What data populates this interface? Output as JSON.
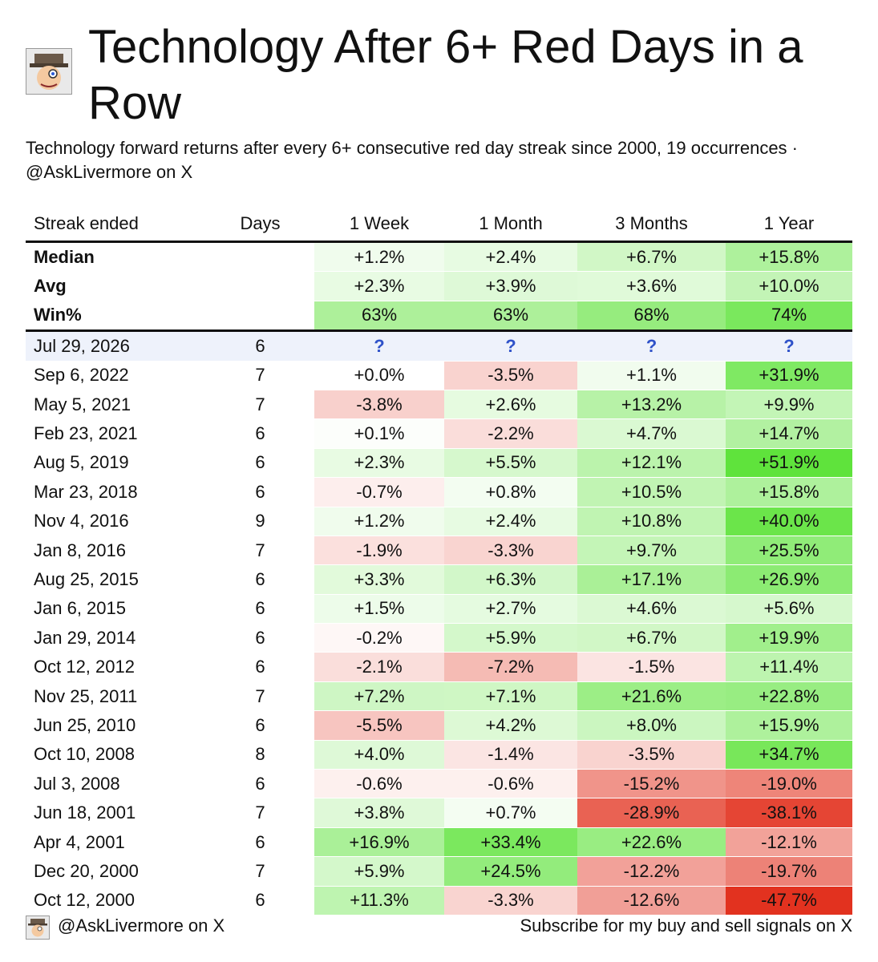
{
  "title": "Technology After 6+ Red Days in a Row",
  "subtitle": "Technology forward returns after every 6+ consecutive red day streak since 2000, 19 occurrences · @AskLivermore on X",
  "logo_icon": "detective-avatar-icon",
  "colors": {
    "green_max": "#5fe33c",
    "red_max": "#e2321f",
    "pending_row": "#eef2fb",
    "question_mark": "#2f52c9"
  },
  "chart_data": {
    "type": "table",
    "columns": [
      "Streak ended",
      "Days",
      "1 Week",
      "1 Month",
      "3 Months",
      "1 Year"
    ],
    "summary": [
      {
        "label": "Median",
        "days": "",
        "values": [
          "+1.2%",
          "+2.4%",
          "+6.7%",
          "+15.8%"
        ]
      },
      {
        "label": "Avg",
        "days": "",
        "values": [
          "+2.3%",
          "+3.9%",
          "+3.6%",
          "+10.0%"
        ]
      },
      {
        "label": "Win%",
        "days": "",
        "values": [
          "63%",
          "63%",
          "68%",
          "74%"
        ]
      }
    ],
    "pending": {
      "date": "Jul 29, 2026",
      "days": "6",
      "values": [
        "?",
        "?",
        "?",
        "?"
      ]
    },
    "rows": [
      {
        "date": "Sep 6, 2022",
        "days": "7",
        "values": [
          "+0.0%",
          "-3.5%",
          "+1.1%",
          "+31.9%"
        ]
      },
      {
        "date": "May 5, 2021",
        "days": "7",
        "values": [
          "-3.8%",
          "+2.6%",
          "+13.2%",
          "+9.9%"
        ]
      },
      {
        "date": "Feb 23, 2021",
        "days": "6",
        "values": [
          "+0.1%",
          "-2.2%",
          "+4.7%",
          "+14.7%"
        ]
      },
      {
        "date": "Aug 5, 2019",
        "days": "6",
        "values": [
          "+2.3%",
          "+5.5%",
          "+12.1%",
          "+51.9%"
        ]
      },
      {
        "date": "Mar 23, 2018",
        "days": "6",
        "values": [
          "-0.7%",
          "+0.8%",
          "+10.5%",
          "+15.8%"
        ]
      },
      {
        "date": "Nov 4, 2016",
        "days": "9",
        "values": [
          "+1.2%",
          "+2.4%",
          "+10.8%",
          "+40.0%"
        ]
      },
      {
        "date": "Jan 8, 2016",
        "days": "7",
        "values": [
          "-1.9%",
          "-3.3%",
          "+9.7%",
          "+25.5%"
        ]
      },
      {
        "date": "Aug 25, 2015",
        "days": "6",
        "values": [
          "+3.3%",
          "+6.3%",
          "+17.1%",
          "+26.9%"
        ]
      },
      {
        "date": "Jan 6, 2015",
        "days": "6",
        "values": [
          "+1.5%",
          "+2.7%",
          "+4.6%",
          "+5.6%"
        ]
      },
      {
        "date": "Jan 29, 2014",
        "days": "6",
        "values": [
          "-0.2%",
          "+5.9%",
          "+6.7%",
          "+19.9%"
        ]
      },
      {
        "date": "Oct 12, 2012",
        "days": "6",
        "values": [
          "-2.1%",
          "-7.2%",
          "-1.5%",
          "+11.4%"
        ]
      },
      {
        "date": "Nov 25, 2011",
        "days": "7",
        "values": [
          "+7.2%",
          "+7.1%",
          "+21.6%",
          "+22.8%"
        ]
      },
      {
        "date": "Jun 25, 2010",
        "days": "6",
        "values": [
          "-5.5%",
          "+4.2%",
          "+8.0%",
          "+15.9%"
        ]
      },
      {
        "date": "Oct 10, 2008",
        "days": "8",
        "values": [
          "+4.0%",
          "-1.4%",
          "-3.5%",
          "+34.7%"
        ]
      },
      {
        "date": "Jul 3, 2008",
        "days": "6",
        "values": [
          "-0.6%",
          "-0.6%",
          "-15.2%",
          "-19.0%"
        ]
      },
      {
        "date": "Jun 18, 2001",
        "days": "7",
        "values": [
          "+3.8%",
          "+0.7%",
          "-28.9%",
          "-38.1%"
        ]
      },
      {
        "date": "Apr 4, 2001",
        "days": "6",
        "values": [
          "+16.9%",
          "+33.4%",
          "+22.6%",
          "-12.1%"
        ]
      },
      {
        "date": "Dec 20, 2000",
        "days": "7",
        "values": [
          "+5.9%",
          "+24.5%",
          "-12.2%",
          "-19.7%"
        ]
      },
      {
        "date": "Oct 12, 2000",
        "days": "6",
        "values": [
          "+11.3%",
          "-3.3%",
          "-12.6%",
          "-47.7%"
        ]
      }
    ]
  },
  "footer": {
    "handle": "@AskLivermore on X",
    "cta": "Subscribe for my buy and sell signals on X"
  }
}
